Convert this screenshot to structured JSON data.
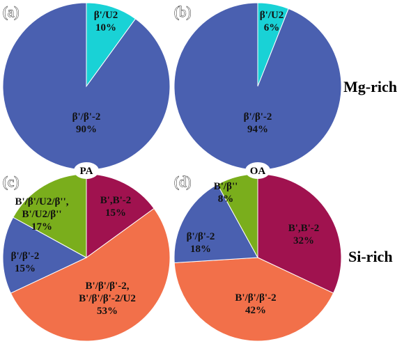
{
  "colors": {
    "blue": "#4a60b0",
    "cyan": "#19d2d6",
    "green": "#7aae1c",
    "crimson": "#a0124f",
    "orange": "#f2704a"
  },
  "row_labels": {
    "top": "Mg-rich",
    "bottom": "Si-rich"
  },
  "tags": {
    "c": "PA",
    "d": "OA"
  },
  "chart_data": [
    {
      "type": "pie",
      "panel": "(a)",
      "group": "Mg-rich",
      "slices": [
        {
          "label": "β'/U2",
          "value": 10,
          "value_text": "10%",
          "color": "#19d2d6"
        },
        {
          "label": "β'/β'-2",
          "value": 90,
          "value_text": "90%",
          "color": "#4a60b0"
        }
      ]
    },
    {
      "type": "pie",
      "panel": "(b)",
      "group": "Mg-rich",
      "slices": [
        {
          "label": "β'/U2",
          "value": 6,
          "value_text": "6%",
          "color": "#19d2d6"
        },
        {
          "label": "β'/β'-2",
          "value": 94,
          "value_text": "94%",
          "color": "#4a60b0"
        }
      ]
    },
    {
      "type": "pie",
      "panel": "(c)",
      "group": "Si-rich",
      "tag": "PA",
      "slices": [
        {
          "label": "B',B'-2",
          "value": 15,
          "value_text": "15%",
          "color": "#a0124f"
        },
        {
          "label": "B'/β'/β'-2,\nB'/β'/β'-2/U2",
          "value": 53,
          "value_text": "53%",
          "color": "#f2704a"
        },
        {
          "label": "β'/β'-2",
          "value": 15,
          "value_text": "15%",
          "color": "#4a60b0"
        },
        {
          "label": "B'/β'/U2/β'',\nB'/U2/β''",
          "value": 17,
          "value_text": "17%",
          "color": "#7aae1c"
        }
      ]
    },
    {
      "type": "pie",
      "panel": "(d)",
      "group": "Si-rich",
      "tag": "OA",
      "slices": [
        {
          "label": "B',B'-2",
          "value": 32,
          "value_text": "32%",
          "color": "#a0124f"
        },
        {
          "label": "B'/β'/β'-2",
          "value": 42,
          "value_text": "42%",
          "color": "#f2704a"
        },
        {
          "label": "β'/β'-2",
          "value": 18,
          "value_text": "18%",
          "color": "#4a60b0"
        },
        {
          "label": "B'/β''",
          "value": 8,
          "value_text": "8%",
          "color": "#7aae1c"
        }
      ]
    }
  ]
}
